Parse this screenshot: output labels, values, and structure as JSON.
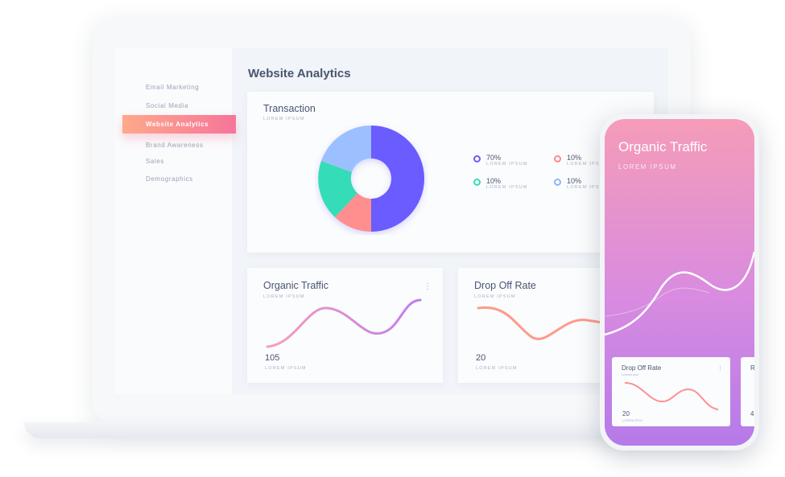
{
  "sidebar": {
    "items": [
      {
        "label": "Email Marketing"
      },
      {
        "label": "Social Media"
      },
      {
        "label": "Website Analytics",
        "active": true
      },
      {
        "label": "Brand Awareness"
      },
      {
        "label": "Sales"
      },
      {
        "label": "Demographics"
      }
    ]
  },
  "header": {
    "title": "Website Analytics"
  },
  "transaction": {
    "title": "Transaction",
    "subtitle": "LOREM IPSUM",
    "legend": [
      {
        "value": "70%",
        "label": "LOREM IPSUM",
        "color": "#6a5cff"
      },
      {
        "value": "10%",
        "label": "LOREM IPSUM",
        "color": "#ff8a8a"
      },
      {
        "value": "10%",
        "label": "LOREM IPSUM",
        "color": "#35dcb8"
      },
      {
        "value": "10%",
        "label": "LOREM IPSUM",
        "color": "#8fb4ff"
      }
    ]
  },
  "organic": {
    "title": "Organic Traffic",
    "subtitle": "LOREM IPSUM",
    "value": "105",
    "value_label": "LOREM IPSUM",
    "menu": "⋮"
  },
  "dropoff": {
    "title": "Drop Off Rate",
    "subtitle": "LOREM IPSUM",
    "value": "20",
    "value_label": "LOREM IPSUM"
  },
  "phone": {
    "title": "Organic Traffic",
    "subtitle": "LOREM IPSUM",
    "card": {
      "title": "Drop Off Rate",
      "subtitle": "Lorems ipst",
      "value": "20",
      "value_label": "LOREM IPSU",
      "menu": "⋮"
    },
    "card2": {
      "title": "R",
      "value": "4"
    }
  }
}
